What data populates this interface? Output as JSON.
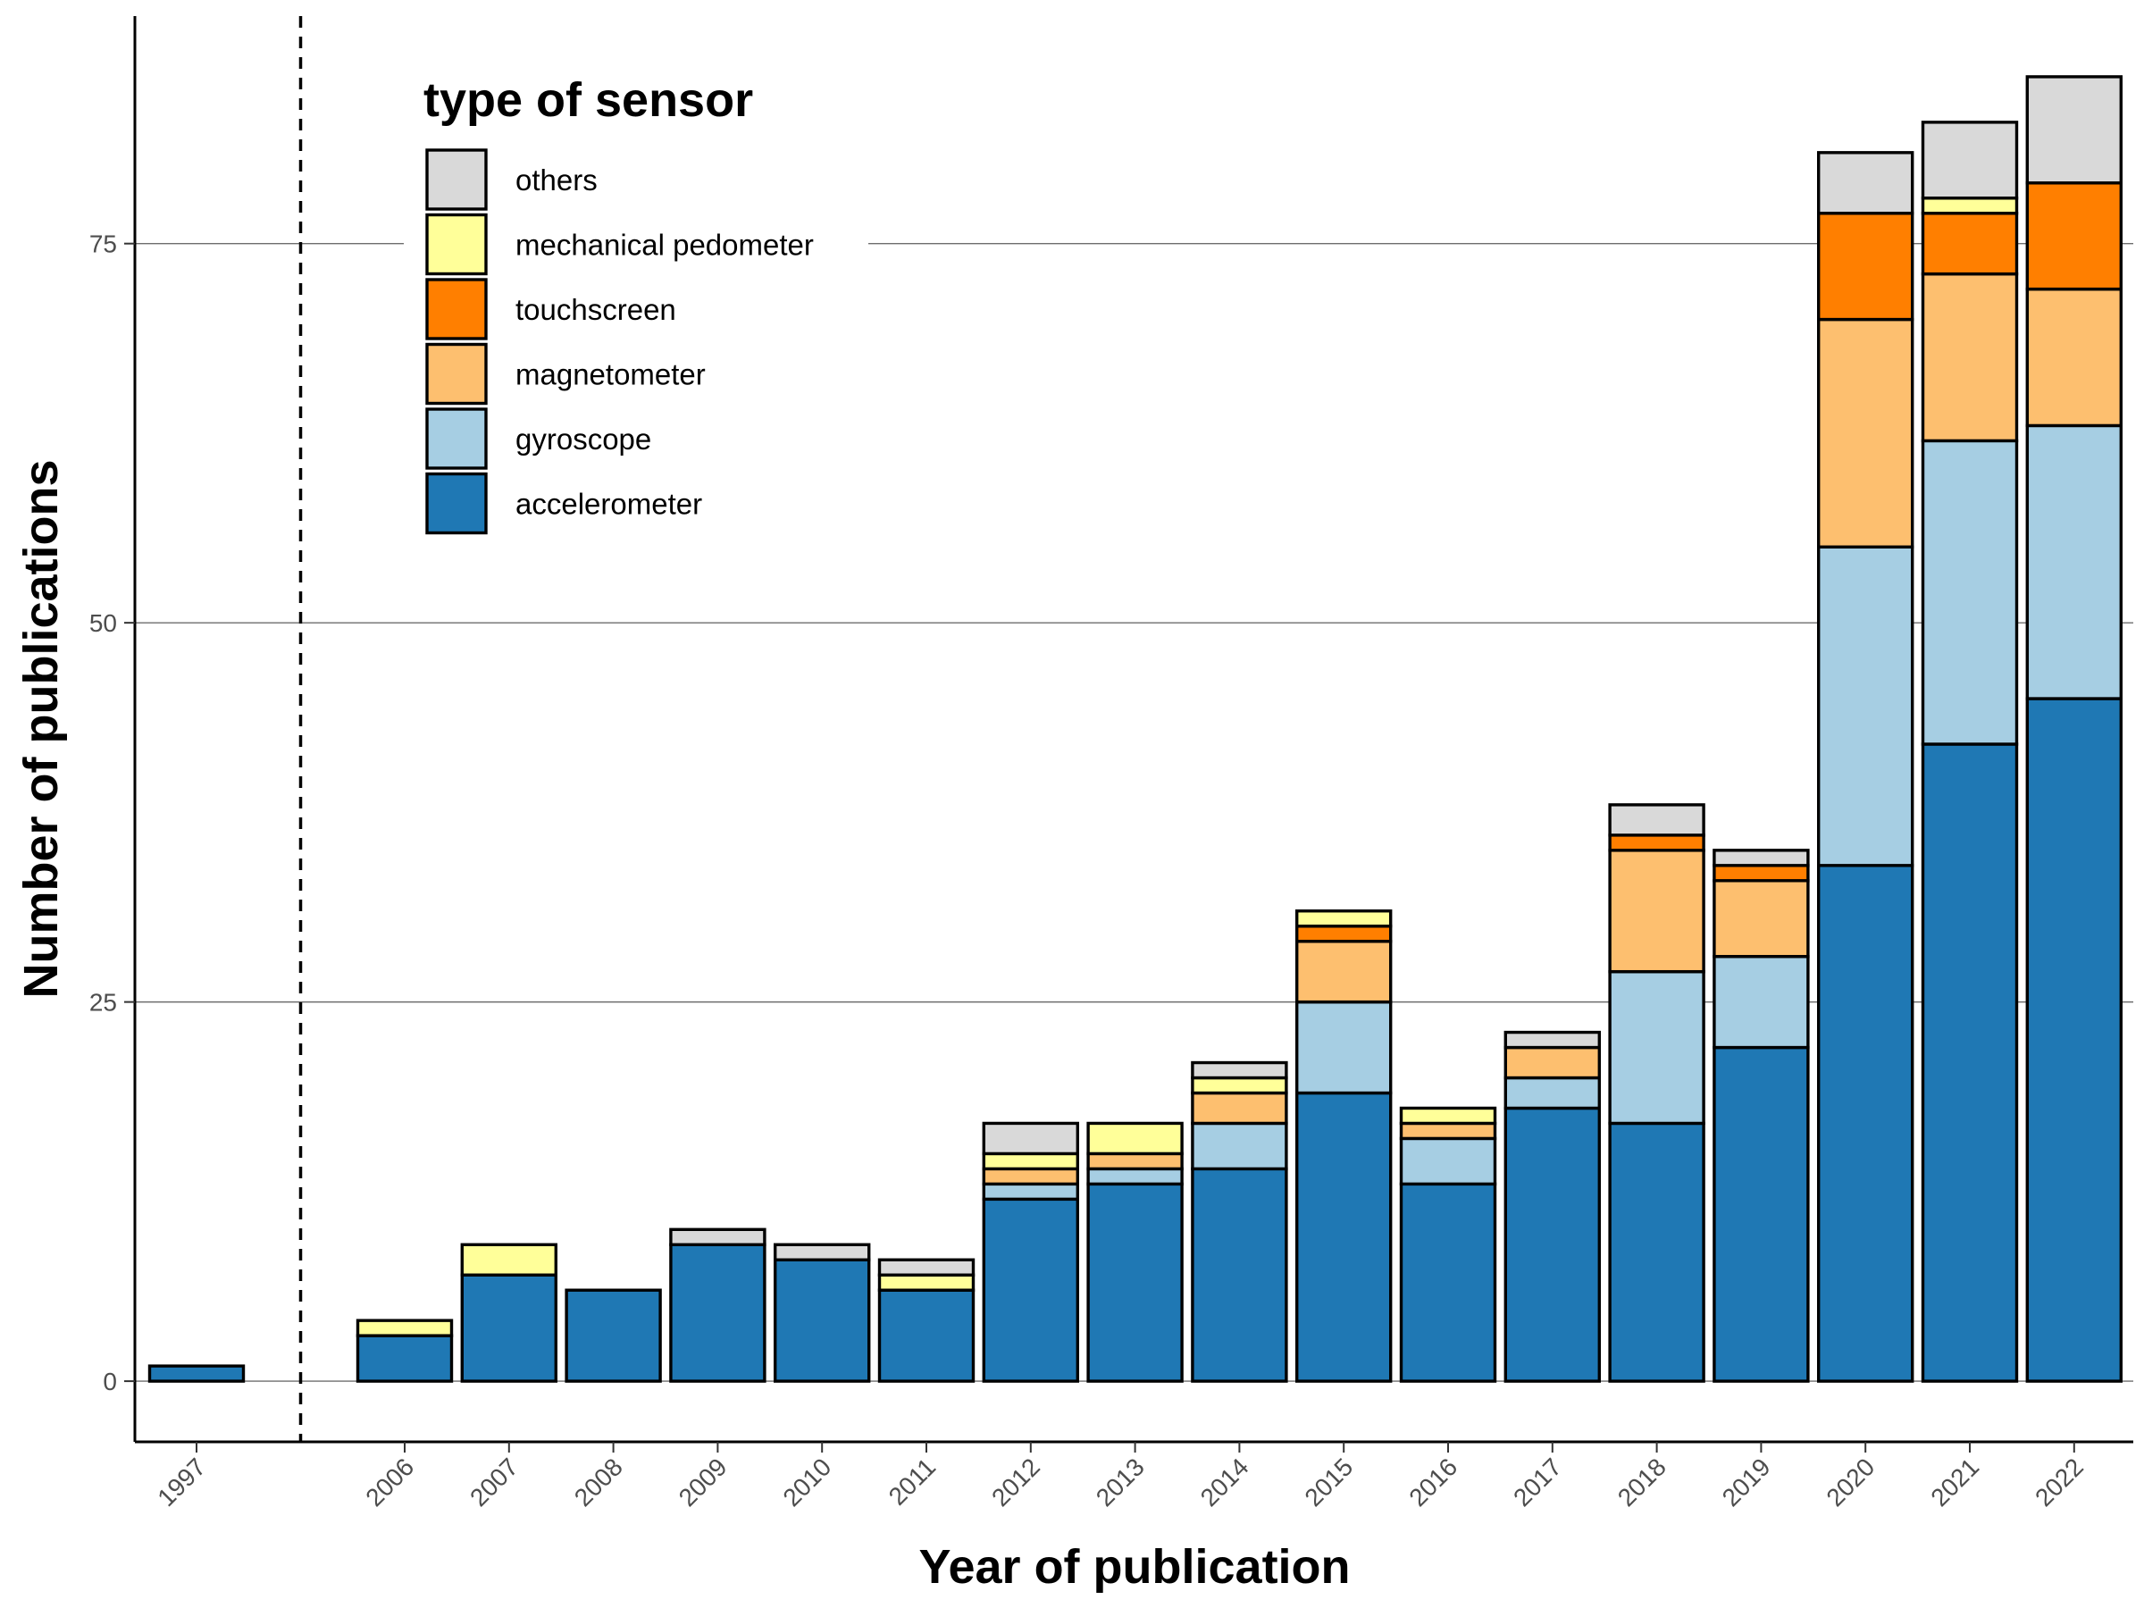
{
  "chart_data": {
    "type": "bar",
    "stacked": true,
    "title": "",
    "xlabel": "Year of publication",
    "ylabel": "Number of publications",
    "ylim": [
      -4,
      90
    ],
    "yticks": [
      0,
      25,
      50,
      75
    ],
    "categories": [
      "1997",
      "2006",
      "2007",
      "2008",
      "2009",
      "2010",
      "2011",
      "2012",
      "2013",
      "2014",
      "2015",
      "2016",
      "2017",
      "2018",
      "2019",
      "2020",
      "2021",
      "2022"
    ],
    "x_positions": [
      1997,
      2006,
      2007,
      2008,
      2009,
      2010,
      2011,
      2012,
      2013,
      2014,
      2015,
      2016,
      2017,
      2018,
      2019,
      2020,
      2021,
      2022
    ],
    "break_after": "1997",
    "grid": "horizontal",
    "legend": {
      "title": "type of sensor",
      "position": "top-left"
    },
    "series": [
      {
        "name": "accelerometer",
        "color": "#1f78b4",
        "values": [
          1,
          3,
          7,
          6,
          9,
          8,
          6,
          12,
          13,
          14,
          19,
          13,
          18,
          17,
          22,
          34,
          42,
          45
        ]
      },
      {
        "name": "gyroscope",
        "color": "#a6cee3",
        "values": [
          0,
          0,
          0,
          0,
          0,
          0,
          0,
          1,
          1,
          3,
          6,
          3,
          2,
          10,
          6,
          21,
          20,
          18
        ]
      },
      {
        "name": "magnetometer",
        "color": "#fdbf6f",
        "values": [
          0,
          0,
          0,
          0,
          0,
          0,
          0,
          1,
          1,
          2,
          4,
          1,
          2,
          8,
          5,
          15,
          11,
          9
        ]
      },
      {
        "name": "touchscreen",
        "color": "#ff7f00",
        "values": [
          0,
          0,
          0,
          0,
          0,
          0,
          0,
          0,
          0,
          0,
          1,
          0,
          0,
          1,
          1,
          7,
          4,
          7
        ]
      },
      {
        "name": "mechanical pedometer",
        "color": "#ffff99",
        "values": [
          0,
          1,
          2,
          0,
          0,
          0,
          1,
          1,
          2,
          1,
          1,
          1,
          0,
          0,
          0,
          0,
          1,
          0
        ]
      },
      {
        "name": "others",
        "color": "#d9d9d9",
        "values": [
          0,
          0,
          0,
          0,
          1,
          1,
          1,
          2,
          0,
          1,
          0,
          0,
          1,
          2,
          1,
          4,
          5,
          7
        ]
      }
    ]
  }
}
